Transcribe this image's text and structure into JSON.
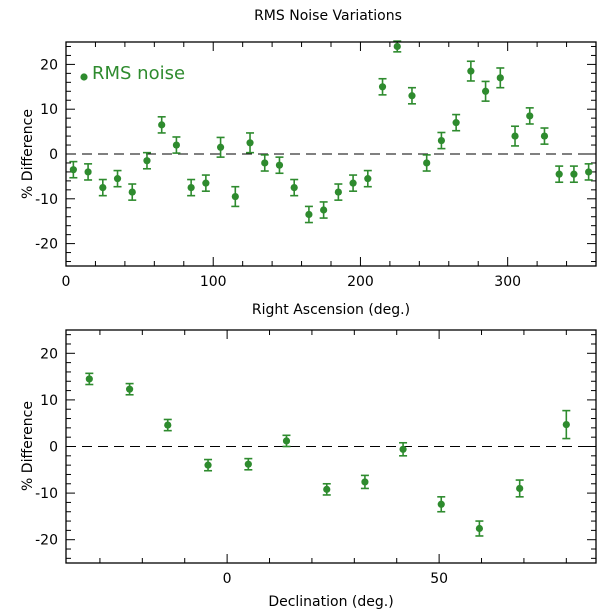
{
  "colors": {
    "series": "#2e8b2e",
    "axes": "#000000"
  },
  "chart_data": [
    {
      "type": "scatter",
      "title": "RMS Noise Variations",
      "xlabel": "Right Ascension (deg.)",
      "ylabel": "% Difference",
      "xlim": [
        0,
        360
      ],
      "ylim": [
        -25,
        25
      ],
      "xticks": [
        0,
        100,
        200,
        300
      ],
      "yticks": [
        -20,
        -10,
        0,
        10,
        20
      ],
      "reference_line": 0,
      "legend": {
        "label": "RMS noise",
        "position": "top-left"
      },
      "series": [
        {
          "name": "RMS noise",
          "x": [
            5,
            15,
            25,
            35,
            45,
            55,
            65,
            75,
            85,
            95,
            105,
            115,
            125,
            135,
            145,
            155,
            165,
            175,
            185,
            195,
            205,
            215,
            225,
            235,
            245,
            255,
            265,
            275,
            285,
            295,
            305,
            315,
            325,
            335,
            345,
            355
          ],
          "y": [
            -3.5,
            -4,
            -7.5,
            -5.5,
            -8.5,
            -1.5,
            6.5,
            2,
            -7.5,
            -6.5,
            1.5,
            -9.5,
            2.5,
            -2,
            -2.5,
            -7.5,
            -13.5,
            -12.5,
            -8.5,
            -6.5,
            -5.5,
            15,
            24,
            13,
            -2,
            3,
            7,
            18.5,
            14,
            17,
            4,
            8.5,
            4,
            -4.5,
            -4.5,
            -4
          ],
          "err": [
            1.8,
            1.8,
            1.8,
            1.8,
            1.8,
            1.8,
            1.8,
            1.8,
            1.8,
            1.8,
            2.2,
            2.2,
            2.2,
            1.8,
            1.8,
            1.8,
            1.8,
            1.8,
            1.8,
            1.8,
            1.8,
            1.8,
            1.2,
            1.8,
            1.8,
            1.8,
            1.8,
            2.2,
            2.2,
            2.2,
            2.2,
            1.8,
            1.8,
            1.8,
            1.8,
            1.8
          ]
        }
      ]
    },
    {
      "type": "scatter",
      "title": "",
      "xlabel": "Declination (deg.)",
      "ylabel": "% Difference",
      "xlim": [
        -38,
        87
      ],
      "ylim": [
        -25,
        25
      ],
      "xticks": [
        0,
        50
      ],
      "yticks": [
        -20,
        -10,
        0,
        10,
        20
      ],
      "reference_line": 0,
      "series": [
        {
          "name": "",
          "x": [
            -32.5,
            -23,
            -14,
            -4.5,
            5,
            14,
            23.5,
            32.5,
            41.5,
            50.5,
            59.5,
            69,
            80
          ],
          "y": [
            14.5,
            12.3,
            4.6,
            -4,
            -3.8,
            1.2,
            -9.2,
            -7.6,
            -0.6,
            -12.4,
            -17.6,
            -9,
            4.7
          ],
          "err": [
            1.2,
            1.2,
            1.2,
            1.2,
            1.2,
            1.2,
            1.2,
            1.4,
            1.4,
            1.6,
            1.6,
            1.8,
            3
          ]
        }
      ]
    }
  ]
}
